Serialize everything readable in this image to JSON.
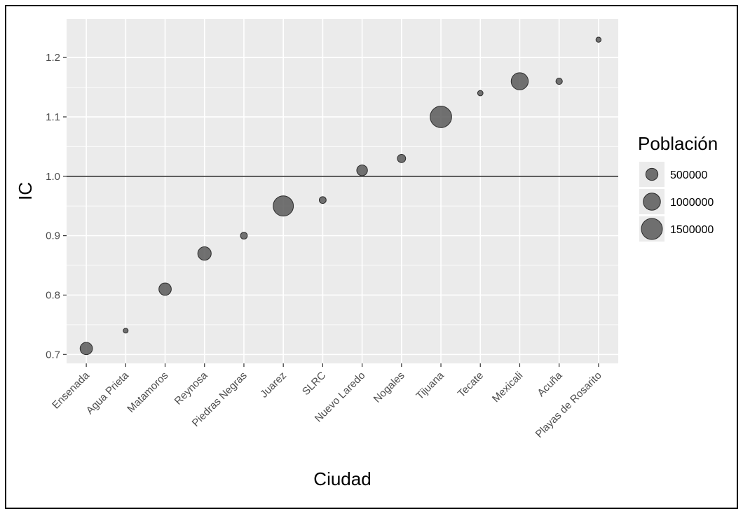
{
  "chart_data": {
    "type": "scatter",
    "title": "",
    "xlabel": "Ciudad",
    "ylabel": "IC",
    "categories": [
      "Ensenada",
      "Agua Prieta",
      "Matamoros",
      "Reynosa",
      "Piedras Negras",
      "Juarez",
      "SLRC",
      "Nuevo Laredo",
      "Nogales",
      "Tijuana",
      "Tecate",
      "Mexicali",
      "Acuña",
      "Playas de Rosarito"
    ],
    "values": [
      0.71,
      0.74,
      0.81,
      0.87,
      0.9,
      0.95,
      0.96,
      1.01,
      1.03,
      1.1,
      1.14,
      1.16,
      1.16,
      1.23
    ],
    "population": [
      520000,
      80000,
      520000,
      610000,
      160000,
      1390000,
      160000,
      390000,
      230000,
      1560000,
      100000,
      990000,
      140000,
      90000
    ],
    "ylim": [
      0.685,
      1.265
    ],
    "yticks": [
      0.7,
      0.8,
      0.9,
      1.0,
      1.1,
      1.2
    ],
    "ytick_labels": [
      "0.7",
      "0.8",
      "0.9",
      "1.0",
      "1.1",
      "1.2"
    ],
    "reference_line": 1.0,
    "grid": true,
    "panel_color": "#ebebeb",
    "point_color": "#595959",
    "legend": {
      "title": "Población",
      "placement": "right",
      "entries": [
        {
          "label": "500000",
          "value": 500000
        },
        {
          "label": "1000000",
          "value": 1000000
        },
        {
          "label": "1500000",
          "value": 1500000
        }
      ]
    }
  }
}
